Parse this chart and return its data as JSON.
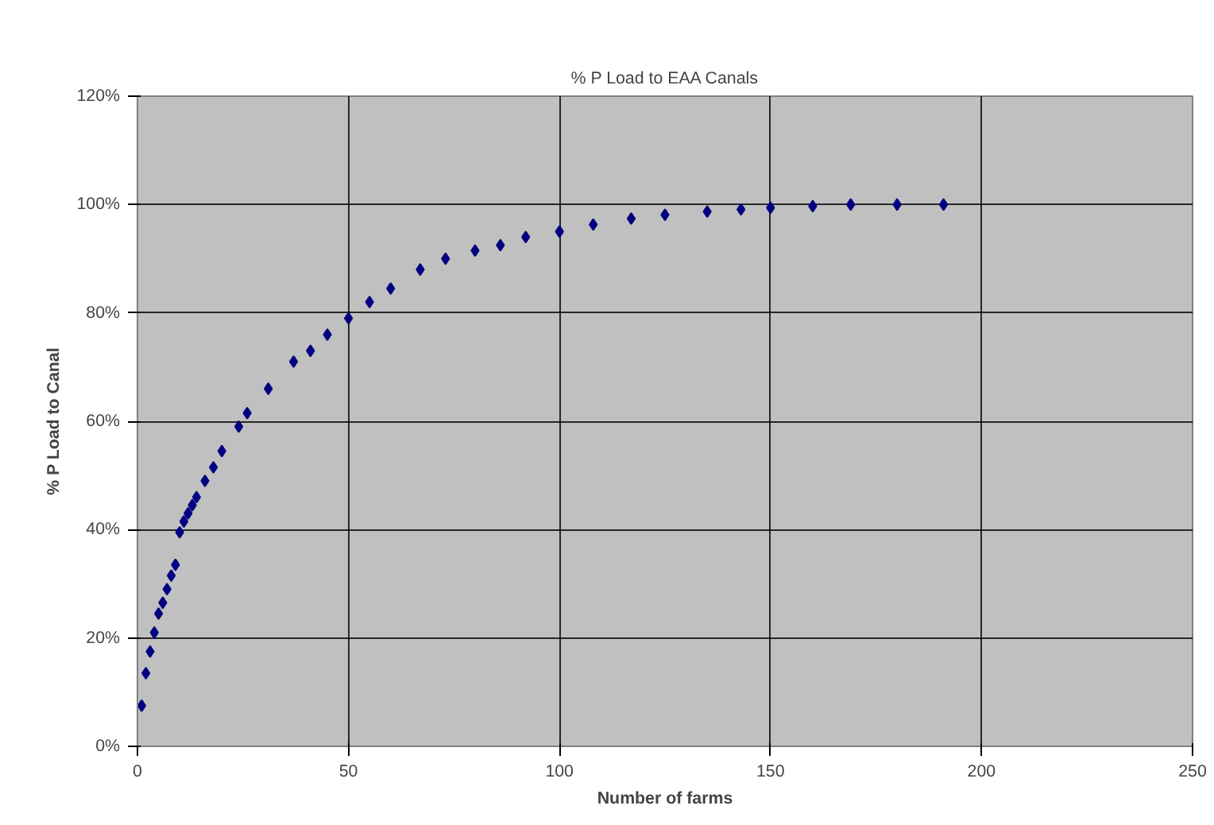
{
  "chart_data": {
    "type": "scatter",
    "title": "% P Load to EAA Canals",
    "xlabel": "Number of farms",
    "ylabel": "% P Load to Canal",
    "x": [
      1,
      2,
      3,
      4,
      5,
      6,
      7,
      8,
      9,
      10,
      11,
      12,
      13,
      14,
      16,
      18,
      20,
      24,
      26,
      31,
      37,
      41,
      45,
      50,
      55,
      60,
      67,
      73,
      80,
      86,
      92,
      100,
      108,
      117,
      125,
      135,
      143,
      150,
      160,
      169,
      180,
      191
    ],
    "series": [
      {
        "color": "#000080",
        "values": [
          7.5,
          13.5,
          17.5,
          21,
          24.5,
          26.5,
          29,
          31.5,
          33.5,
          39.5,
          41.5,
          43,
          44.5,
          46,
          49,
          51.5,
          54.5,
          59,
          61.5,
          66,
          71,
          73,
          76,
          79,
          82,
          84.5,
          88,
          90,
          91.5,
          92.5,
          94,
          95,
          96.3,
          97.4,
          98.1,
          98.7,
          99.1,
          99.4,
          99.7,
          100,
          100,
          100
        ]
      }
    ],
    "xlim": [
      0,
      250
    ],
    "xticks": [
      0,
      50,
      100,
      150,
      200,
      250
    ],
    "ylim": [
      0,
      120
    ],
    "yticks": [
      {
        "value": 0,
        "label": "0%"
      },
      {
        "value": 20,
        "label": "20%"
      },
      {
        "value": 40,
        "label": "40%"
      },
      {
        "value": 60,
        "label": "60%"
      },
      {
        "value": 80,
        "label": "80%"
      },
      {
        "value": 100,
        "label": "100%"
      },
      {
        "value": 120,
        "label": "120%"
      }
    ],
    "grid": true,
    "marker": "diamond"
  }
}
